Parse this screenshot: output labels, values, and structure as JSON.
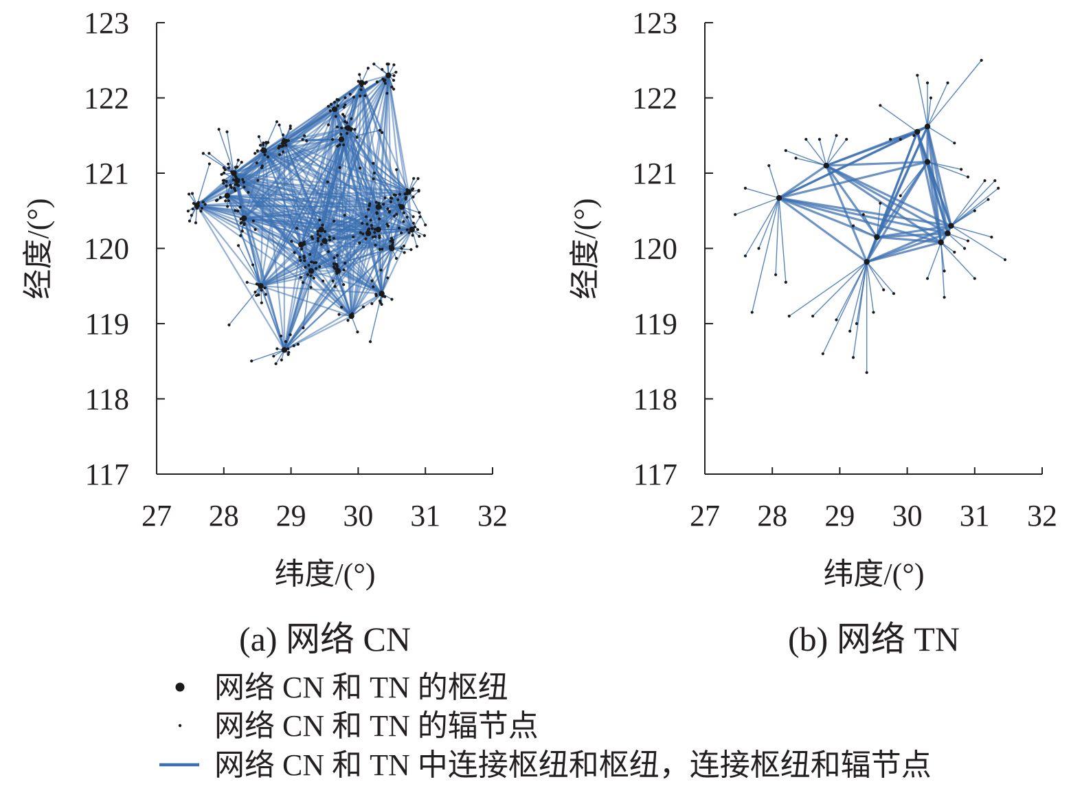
{
  "colors": {
    "edge": "#3b6fb0",
    "node": "#1a1a1a",
    "axis": "#231f20"
  },
  "chart_data": [
    {
      "type": "scatter",
      "caption": "(a) 网络 CN",
      "xlabel": "纬度/(°)",
      "ylabel": "经度/(°)",
      "xlim": [
        27,
        32
      ],
      "ylim": [
        117,
        123
      ],
      "xticks": [
        "27",
        "28",
        "29",
        "30",
        "31",
        "32"
      ],
      "yticks": [
        "117",
        "118",
        "119",
        "120",
        "121",
        "122",
        "123"
      ],
      "hubs": [
        [
          27.6,
          120.57
        ],
        [
          28.05,
          120.7
        ],
        [
          28.2,
          120.9
        ],
        [
          28.3,
          120.4
        ],
        [
          28.6,
          121.3
        ],
        [
          28.9,
          121.42
        ],
        [
          28.55,
          119.5
        ],
        [
          28.9,
          118.65
        ],
        [
          29.9,
          119.1
        ],
        [
          30.35,
          119.4
        ],
        [
          29.15,
          120.05
        ],
        [
          29.3,
          119.7
        ],
        [
          29.5,
          120.1
        ],
        [
          29.7,
          119.7
        ],
        [
          29.45,
          120.25
        ],
        [
          29.65,
          121.85
        ],
        [
          30.05,
          122.2
        ],
        [
          30.45,
          122.3
        ],
        [
          29.85,
          121.6
        ],
        [
          30.15,
          120.2
        ],
        [
          30.3,
          120.25
        ],
        [
          30.8,
          120.25
        ],
        [
          30.75,
          120.75
        ],
        [
          30.65,
          120.55
        ],
        [
          30.3,
          120.55
        ],
        [
          29.75,
          121.45
        ],
        [
          30.5,
          120.0
        ],
        [
          28.15,
          121.0
        ]
      ],
      "spokes_seed": 1,
      "spoke_count": 420,
      "hub_hub_edges": "all"
    },
    {
      "type": "scatter",
      "caption": "(b) 网络 TN",
      "xlabel": "纬度/(°)",
      "ylabel": "经度/(°)",
      "xlim": [
        27,
        32
      ],
      "ylim": [
        117,
        123
      ],
      "xticks": [
        "27",
        "28",
        "29",
        "30",
        "31",
        "32"
      ],
      "yticks": [
        "117",
        "118",
        "119",
        "120",
        "121",
        "122",
        "123"
      ],
      "hubs": [
        [
          28.1,
          120.67
        ],
        [
          28.8,
          121.1
        ],
        [
          29.4,
          119.82
        ],
        [
          29.55,
          120.15
        ],
        [
          30.15,
          121.55
        ],
        [
          30.3,
          121.62
        ],
        [
          30.3,
          121.15
        ],
        [
          30.5,
          120.08
        ],
        [
          30.6,
          120.2
        ],
        [
          30.65,
          120.3
        ]
      ],
      "spoke_points": [
        [
          27.45,
          120.45
        ],
        [
          27.6,
          119.9
        ],
        [
          27.7,
          119.15
        ],
        [
          27.8,
          120.0
        ],
        [
          27.6,
          120.8
        ],
        [
          27.95,
          121.1
        ],
        [
          28.2,
          121.3
        ],
        [
          28.35,
          121.2
        ],
        [
          28.5,
          121.45
        ],
        [
          28.7,
          121.45
        ],
        [
          28.95,
          121.5
        ],
        [
          29.1,
          121.45
        ],
        [
          28.25,
          119.1
        ],
        [
          28.05,
          119.65
        ],
        [
          28.2,
          119.55
        ],
        [
          28.6,
          119.1
        ],
        [
          28.75,
          118.6
        ],
        [
          28.95,
          119.05
        ],
        [
          29.15,
          118.9
        ],
        [
          29.2,
          118.55
        ],
        [
          29.25,
          119.0
        ],
        [
          29.4,
          118.35
        ],
        [
          29.5,
          119.15
        ],
        [
          29.65,
          119.45
        ],
        [
          29.8,
          119.4
        ],
        [
          29.35,
          120.45
        ],
        [
          29.2,
          120.3
        ],
        [
          29.6,
          120.6
        ],
        [
          29.9,
          120.7
        ],
        [
          29.75,
          121.45
        ],
        [
          29.9,
          121.45
        ],
        [
          29.6,
          121.9
        ],
        [
          30.1,
          121.5
        ],
        [
          30.15,
          122.3
        ],
        [
          30.3,
          122.2
        ],
        [
          30.35,
          122.0
        ],
        [
          30.6,
          122.2
        ],
        [
          31.1,
          122.5
        ],
        [
          30.7,
          121.4
        ],
        [
          30.8,
          121.05
        ],
        [
          30.9,
          120.95
        ],
        [
          31.15,
          120.9
        ],
        [
          31.3,
          120.9
        ],
        [
          31.35,
          120.8
        ],
        [
          31.2,
          120.65
        ],
        [
          31.0,
          120.5
        ],
        [
          31.25,
          120.15
        ],
        [
          31.45,
          119.85
        ],
        [
          31.0,
          119.6
        ],
        [
          30.9,
          120.1
        ],
        [
          30.55,
          119.35
        ],
        [
          30.3,
          119.6
        ],
        [
          30.55,
          119.7
        ],
        [
          30.85,
          120.0
        ],
        [
          30.7,
          119.95
        ]
      ],
      "hub_hub_edges": "all"
    }
  ],
  "legend": {
    "hub_label": "网络 CN 和 TN 的枢纽",
    "spoke_label": "网络 CN 和 TN 的辐节点",
    "edge_label": "网络 CN 和 TN 中连接枢纽和枢纽，连接枢纽和辐节点"
  }
}
